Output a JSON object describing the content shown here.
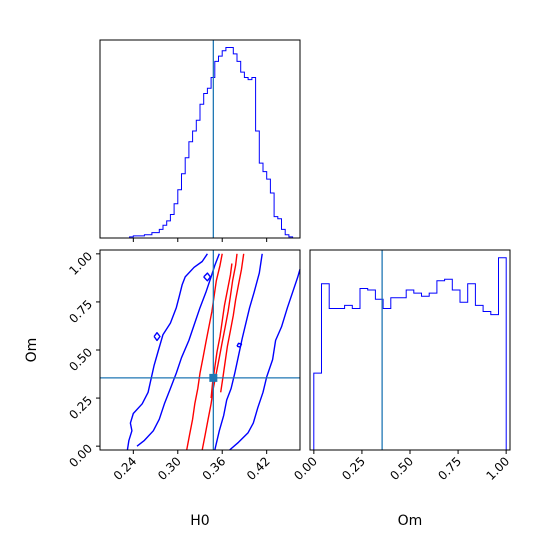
{
  "chart_data": {
    "type": "corner",
    "parameters": [
      "H0",
      "Om"
    ],
    "truth": {
      "H0": 0.348,
      "Om": 0.355
    },
    "colors": {
      "red": "#ff0000",
      "blue": "#0000ff",
      "truth": "#1f77b4"
    },
    "panels": [
      {
        "id": "H0-marginal",
        "type": "histogram",
        "xlim": [
          0.195,
          0.465
        ],
        "xticks": [
          0.24,
          0.3,
          0.36,
          0.42
        ],
        "show_x_ticklabels": false,
        "show_y_ticks": false,
        "bin_edges": [
          0.195,
          0.2,
          0.205,
          0.21,
          0.215,
          0.22,
          0.225,
          0.23,
          0.235,
          0.24,
          0.245,
          0.25,
          0.255,
          0.26,
          0.265,
          0.27,
          0.275,
          0.28,
          0.285,
          0.29,
          0.295,
          0.3,
          0.305,
          0.31,
          0.315,
          0.32,
          0.325,
          0.33,
          0.335,
          0.34,
          0.345,
          0.35,
          0.355,
          0.36,
          0.365,
          0.37,
          0.375,
          0.38,
          0.385,
          0.39,
          0.395,
          0.4,
          0.405,
          0.41,
          0.415,
          0.42,
          0.425,
          0.43,
          0.435,
          0.44,
          0.445,
          0.45,
          0.455,
          0.46,
          0.465
        ],
        "ylim": [
          0,
          185
        ],
        "series": [
          {
            "color": "#0000ff",
            "counts": [
              0,
              0,
              0,
              0,
              0,
              0,
              0,
              0,
              1,
              2,
              2,
              2,
              3,
              3,
              5,
              5,
              8,
              12,
              16,
              22,
              32,
              45,
              60,
              75,
              90,
              100,
              110,
              125,
              135,
              140,
              150,
              165,
              170,
              175,
              178,
              178,
              172,
              165,
              155,
              150,
              148,
              150,
              100,
              70,
              62,
              55,
              42,
              20,
              18,
              8,
              3,
              1,
              0,
              0
            ]
          },
          {
            "color": "#ff0000",
            "counts": [
              0,
              0,
              0,
              0,
              0,
              0,
              0,
              0,
              0,
              0,
              0,
              0,
              0,
              0,
              0,
              0,
              0,
              0,
              0,
              0,
              0,
              0,
              0,
              0,
              0,
              0,
              0,
              0,
              0,
              0,
              0,
              0,
              0,
              0,
              0,
              0,
              0,
              0,
              0,
              0,
              0,
              0,
              0,
              0,
              0,
              0,
              0,
              0,
              0,
              0,
              0,
              0,
              0,
              0
            ]
          }
        ]
      },
      {
        "id": "H0-Om-2d",
        "type": "contour",
        "xlim": [
          0.195,
          0.465
        ],
        "ylim": [
          -0.02,
          1.02
        ],
        "xticks": [
          0.24,
          0.3,
          0.36,
          0.42
        ],
        "yticks": [
          0.0,
          0.25,
          0.5,
          0.75,
          1.0
        ],
        "xticklabels": [
          "0.24",
          "0.30",
          "0.36",
          "0.42"
        ],
        "yticklabels": [
          "0.00",
          "0.25",
          "0.50",
          "0.75",
          "1.00"
        ],
        "xlabel": "H0",
        "ylabel": "Om",
        "contours": [
          {
            "color": "#0000ff",
            "points": [
              [
                0.232,
                -0.02
              ],
              [
                0.234,
                0.03
              ],
              [
                0.238,
                0.08
              ],
              [
                0.236,
                0.12
              ],
              [
                0.24,
                0.17
              ],
              [
                0.252,
                0.22
              ],
              [
                0.26,
                0.28
              ],
              [
                0.264,
                0.35
              ],
              [
                0.268,
                0.42
              ],
              [
                0.274,
                0.5
              ],
              [
                0.28,
                0.58
              ],
              [
                0.29,
                0.64
              ],
              [
                0.298,
                0.72
              ],
              [
                0.302,
                0.78
              ],
              [
                0.306,
                0.84
              ],
              [
                0.31,
                0.88
              ],
              [
                0.322,
                0.93
              ],
              [
                0.333,
                0.96
              ],
              [
                0.34,
                1.0
              ]
            ]
          },
          {
            "color": "#0000ff",
            "points": [
              [
                0.37,
                -0.02
              ],
              [
                0.382,
                0.02
              ],
              [
                0.395,
                0.07
              ],
              [
                0.402,
                0.12
              ],
              [
                0.408,
                0.2
              ],
              [
                0.415,
                0.28
              ],
              [
                0.42,
                0.36
              ],
              [
                0.428,
                0.45
              ],
              [
                0.432,
                0.55
              ],
              [
                0.44,
                0.62
              ],
              [
                0.448,
                0.72
              ],
              [
                0.455,
                0.8
              ],
              [
                0.462,
                0.88
              ],
              [
                0.465,
                0.92
              ]
            ]
          },
          {
            "color": "#0000ff",
            "points": [
              [
                0.35,
                -0.02
              ],
              [
                0.356,
                0.08
              ],
              [
                0.362,
                0.16
              ],
              [
                0.366,
                0.24
              ],
              [
                0.372,
                0.3
              ],
              [
                0.377,
                0.38
              ],
              [
                0.382,
                0.47
              ],
              [
                0.387,
                0.56
              ],
              [
                0.392,
                0.64
              ],
              [
                0.397,
                0.72
              ],
              [
                0.403,
                0.8
              ],
              [
                0.41,
                0.9
              ],
              [
                0.414,
                1.0
              ]
            ]
          },
          {
            "color": "#0000ff",
            "points": [
              [
                0.245,
                0.0
              ],
              [
                0.255,
                0.03
              ],
              [
                0.267,
                0.08
              ],
              [
                0.275,
                0.14
              ],
              [
                0.282,
                0.22
              ],
              [
                0.29,
                0.3
              ],
              [
                0.298,
                0.38
              ],
              [
                0.305,
                0.46
              ],
              [
                0.315,
                0.55
              ],
              [
                0.322,
                0.63
              ],
              [
                0.33,
                0.72
              ],
              [
                0.338,
                0.8
              ],
              [
                0.345,
                0.88
              ],
              [
                0.35,
                0.94
              ],
              [
                0.356,
                1.0
              ]
            ]
          },
          {
            "color": "#0000ff",
            "points": [
              [
                0.335,
                0.88
              ],
              [
                0.34,
                0.86
              ],
              [
                0.344,
                0.88
              ],
              [
                0.34,
                0.9
              ],
              [
                0.335,
                0.88
              ]
            ]
          },
          {
            "color": "#0000ff",
            "points": [
              [
                0.268,
                0.57
              ],
              [
                0.272,
                0.55
              ],
              [
                0.276,
                0.57
              ],
              [
                0.272,
                0.59
              ],
              [
                0.268,
                0.57
              ]
            ]
          },
          {
            "color": "#0000ff",
            "points": [
              [
                0.38,
                0.52
              ],
              [
                0.384,
                0.515
              ],
              [
                0.386,
                0.53
              ],
              [
                0.382,
                0.535
              ],
              [
                0.38,
                0.52
              ]
            ]
          },
          {
            "color": "#ff0000",
            "points": [
              [
                0.312,
                -0.02
              ],
              [
                0.316,
                0.06
              ],
              [
                0.32,
                0.14
              ],
              [
                0.323,
                0.22
              ],
              [
                0.327,
                0.3
              ],
              [
                0.33,
                0.38
              ],
              [
                0.334,
                0.46
              ],
              [
                0.338,
                0.54
              ],
              [
                0.342,
                0.62
              ],
              [
                0.346,
                0.7
              ],
              [
                0.349,
                0.78
              ],
              [
                0.352,
                0.86
              ],
              [
                0.357,
                0.94
              ],
              [
                0.36,
                1.0
              ]
            ]
          },
          {
            "color": "#ff0000",
            "points": [
              [
                0.333,
                -0.02
              ],
              [
                0.337,
                0.06
              ],
              [
                0.341,
                0.14
              ],
              [
                0.345,
                0.22
              ],
              [
                0.348,
                0.3
              ],
              [
                0.352,
                0.38
              ],
              [
                0.356,
                0.46
              ],
              [
                0.36,
                0.54
              ],
              [
                0.364,
                0.62
              ],
              [
                0.368,
                0.7
              ],
              [
                0.371,
                0.78
              ],
              [
                0.374,
                0.86
              ],
              [
                0.378,
                0.94
              ],
              [
                0.38,
                1.0
              ]
            ]
          },
          {
            "color": "#ff0000",
            "points": [
              [
                0.345,
                0.25
              ],
              [
                0.347,
                0.33
              ],
              [
                0.35,
                0.41
              ],
              [
                0.353,
                0.49
              ],
              [
                0.357,
                0.57
              ],
              [
                0.36,
                0.65
              ],
              [
                0.363,
                0.73
              ],
              [
                0.367,
                0.81
              ],
              [
                0.371,
                0.89
              ],
              [
                0.373,
                0.95
              ]
            ]
          },
          {
            "color": "#ff0000",
            "points": [
              [
                0.358,
                0.28
              ],
              [
                0.361,
                0.36
              ],
              [
                0.364,
                0.44
              ],
              [
                0.367,
                0.52
              ],
              [
                0.371,
                0.6
              ],
              [
                0.375,
                0.68
              ],
              [
                0.378,
                0.76
              ],
              [
                0.382,
                0.84
              ],
              [
                0.386,
                0.92
              ],
              [
                0.389,
                1.0
              ]
            ]
          }
        ]
      },
      {
        "id": "Om-marginal",
        "type": "histogram",
        "xlim": [
          -0.02,
          1.02
        ],
        "xticks": [
          0.0,
          0.25,
          0.5,
          0.75,
          1.0
        ],
        "xticklabels": [
          "0.00",
          "0.25",
          "0.50",
          "0.75",
          "1.00"
        ],
        "xlabel": "Om",
        "show_y_ticks": false,
        "bin_edges": [
          0.0,
          0.04,
          0.08,
          0.12,
          0.16,
          0.2,
          0.24,
          0.28,
          0.32,
          0.36,
          0.4,
          0.44,
          0.48,
          0.52,
          0.56,
          0.6,
          0.64,
          0.68,
          0.72,
          0.76,
          0.8,
          0.84,
          0.88,
          0.92,
          0.96,
          1.0
        ],
        "ylim": [
          0,
          130
        ],
        "series": [
          {
            "color": "#0000ff",
            "counts": [
              50,
              108,
              92,
              92,
              94,
              92,
              105,
              104,
              98,
              92,
              99,
              99,
              104,
              102,
              100,
              102,
              110,
              111,
              104,
              96,
              108,
              94,
              90,
              88,
              125
            ]
          },
          {
            "color": "#ff0000",
            "counts": [
              0,
              0,
              0,
              0,
              0,
              0,
              0,
              0,
              0,
              0,
              0,
              0,
              0,
              0,
              0,
              0,
              0,
              0,
              0,
              0,
              0,
              0,
              0,
              0,
              0
            ]
          }
        ]
      }
    ]
  }
}
